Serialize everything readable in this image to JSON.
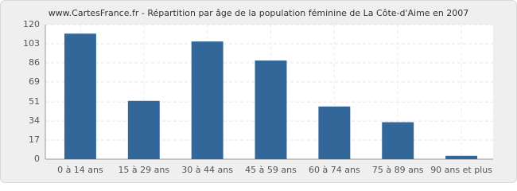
{
  "chart_data": {
    "type": "bar",
    "title": "www.CartesFrance.fr - Répartition par âge de la population féminine de La Côte-d'Aime en 2007",
    "categories": [
      "0 à 14 ans",
      "15 à 29 ans",
      "30 à 44 ans",
      "45 à 59 ans",
      "60 à 74 ans",
      "75 à 89 ans",
      "90 ans et plus"
    ],
    "values": [
      112,
      52,
      105,
      88,
      47,
      33,
      3
    ],
    "color": "#336699",
    "ylim": [
      0,
      120
    ],
    "yticks": [
      0,
      17,
      34,
      51,
      69,
      86,
      103,
      120
    ],
    "grid": true
  }
}
